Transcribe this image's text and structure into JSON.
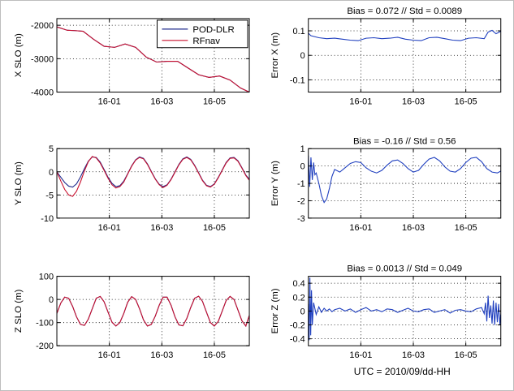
{
  "figure": {
    "xlabel_bottom": "UTC = 2010/09/dd-HH",
    "x_ticks": [
      "16-01",
      "16-03",
      "16-05"
    ],
    "x_range": [
      "15-23:00",
      "16-06:20"
    ]
  },
  "chart_data": [
    {
      "id": "x-slo",
      "type": "line",
      "ylabel": "X SLO (m)",
      "title": "",
      "ylim": [
        -4000,
        -1800
      ],
      "yticks": [
        -4000,
        -3000,
        -2000
      ],
      "grid": true,
      "legend": {
        "placement": "top-right",
        "entries": [
          "POD-DLR",
          "RFnav"
        ]
      },
      "x_unit": "hours since 16-00:00 (UTC, 2010/09/16)",
      "x_hours": [
        -1.0,
        -0.6,
        -0.3,
        0.0,
        0.4,
        0.8,
        1.2,
        1.6,
        2.0,
        2.4,
        2.8,
        3.2,
        3.6,
        4.0,
        4.4,
        4.8,
        5.2,
        5.6,
        6.0,
        6.33
      ],
      "series": [
        {
          "name": "POD-DLR",
          "color": "#1f2a8c",
          "values": [
            -2050,
            -2150,
            -2160,
            -2180,
            -2420,
            -2630,
            -2660,
            -2560,
            -2660,
            -2950,
            -3100,
            -3080,
            -3080,
            -3280,
            -3480,
            -3560,
            -3520,
            -3640,
            -3880,
            -4000
          ]
        },
        {
          "name": "RFnav",
          "color": "#c8102e",
          "values": [
            -2050,
            -2150,
            -2160,
            -2180,
            -2420,
            -2630,
            -2660,
            -2560,
            -2660,
            -2950,
            -3100,
            -3080,
            -3080,
            -3280,
            -3480,
            -3560,
            -3520,
            -3640,
            -3880,
            -4000
          ]
        }
      ]
    },
    {
      "id": "y-slo",
      "type": "line",
      "ylabel": "Y SLO (m)",
      "title": "",
      "ylim": [
        -10,
        5
      ],
      "yticks": [
        -10,
        -5,
        0,
        5
      ],
      "grid": true,
      "x_hours": [
        -1.0,
        -0.85,
        -0.7,
        -0.55,
        -0.4,
        -0.25,
        -0.1,
        0.05,
        0.2,
        0.35,
        0.5,
        0.65,
        0.8,
        0.95,
        1.1,
        1.25,
        1.4,
        1.55,
        1.7,
        1.85,
        2.0,
        2.15,
        2.3,
        2.45,
        2.6,
        2.75,
        2.9,
        3.05,
        3.2,
        3.35,
        3.5,
        3.65,
        3.8,
        3.95,
        4.1,
        4.25,
        4.4,
        4.55,
        4.7,
        4.85,
        5.0,
        5.15,
        5.3,
        5.45,
        5.6,
        5.75,
        5.9,
        6.05,
        6.2,
        6.33
      ],
      "series": [
        {
          "name": "POD-DLR",
          "color": "#1f2a8c",
          "values": [
            0,
            -1.2,
            -2.3,
            -3.1,
            -3.3,
            -2.6,
            -1.1,
            0.7,
            2.3,
            3.2,
            3.1,
            2.1,
            0.5,
            -1.2,
            -2.5,
            -3.2,
            -3.0,
            -2.0,
            -0.4,
            1.3,
            2.6,
            3.2,
            2.9,
            1.7,
            0.1,
            -1.5,
            -2.7,
            -3.2,
            -2.8,
            -1.6,
            0.0,
            1.6,
            2.8,
            3.2,
            2.7,
            1.4,
            -0.2,
            -1.8,
            -2.9,
            -3.2,
            -2.6,
            -1.2,
            0.4,
            2.0,
            3.0,
            3.1,
            2.4,
            0.9,
            -0.7,
            -1.6
          ]
        },
        {
          "name": "RFnav",
          "color": "#c8102e",
          "values": [
            0,
            -2.0,
            -3.8,
            -5.0,
            -5.3,
            -4.2,
            -2.2,
            0.2,
            2.2,
            3.3,
            3.0,
            1.9,
            0.3,
            -1.4,
            -2.8,
            -3.5,
            -3.2,
            -2.2,
            -0.5,
            1.2,
            2.5,
            3.1,
            2.8,
            1.6,
            0.0,
            -1.6,
            -2.8,
            -3.4,
            -2.9,
            -1.7,
            -0.1,
            1.5,
            2.7,
            3.1,
            2.6,
            1.3,
            -0.3,
            -1.9,
            -3.0,
            -3.3,
            -2.7,
            -1.3,
            0.3,
            1.9,
            2.9,
            3.0,
            2.3,
            0.8,
            -0.8,
            -1.8
          ]
        }
      ]
    },
    {
      "id": "z-slo",
      "type": "line",
      "ylabel": "Z SLO (m)",
      "title": "",
      "ylim": [
        -200,
        100
      ],
      "yticks": [
        -200,
        -100,
        0,
        100
      ],
      "grid": true,
      "x_hours": [
        -1.0,
        -0.85,
        -0.7,
        -0.55,
        -0.4,
        -0.25,
        -0.1,
        0.05,
        0.2,
        0.35,
        0.5,
        0.65,
        0.8,
        0.95,
        1.1,
        1.25,
        1.4,
        1.55,
        1.7,
        1.85,
        2.0,
        2.15,
        2.3,
        2.45,
        2.6,
        2.75,
        2.9,
        3.05,
        3.2,
        3.35,
        3.5,
        3.65,
        3.8,
        3.95,
        4.1,
        4.25,
        4.4,
        4.55,
        4.7,
        4.85,
        5.0,
        5.15,
        5.3,
        5.45,
        5.6,
        5.75,
        5.9,
        6.05,
        6.2,
        6.33
      ],
      "series": [
        {
          "name": "POD-DLR",
          "color": "#1f2a8c",
          "values": [
            -60,
            -15,
            10,
            5,
            -30,
            -75,
            -108,
            -112,
            -85,
            -40,
            5,
            13,
            -10,
            -55,
            -98,
            -115,
            -100,
            -60,
            -12,
            12,
            0,
            -40,
            -88,
            -115,
            -108,
            -72,
            -25,
            10,
            10,
            -25,
            -75,
            -110,
            -114,
            -82,
            -35,
            5,
            14,
            -8,
            -55,
            -100,
            -115,
            -95,
            -50,
            -5,
            13,
            0,
            -45,
            -92,
            -115,
            -70
          ]
        },
        {
          "name": "RFnav",
          "color": "#c8102e",
          "values": [
            -60,
            -15,
            10,
            5,
            -30,
            -75,
            -108,
            -112,
            -85,
            -40,
            5,
            13,
            -10,
            -55,
            -98,
            -115,
            -100,
            -60,
            -12,
            12,
            0,
            -40,
            -88,
            -115,
            -108,
            -72,
            -25,
            10,
            10,
            -25,
            -75,
            -110,
            -114,
            -82,
            -35,
            5,
            14,
            -8,
            -55,
            -100,
            -115,
            -95,
            -50,
            -5,
            13,
            0,
            -45,
            -92,
            -115,
            -70
          ]
        }
      ]
    },
    {
      "id": "err-x",
      "type": "line",
      "title": "Bias = 0.072 // Std = 0.0089",
      "ylabel": "Error X (m)",
      "ylim": [
        -0.15,
        0.15
      ],
      "yticks": [
        -0.1,
        0,
        0.1
      ],
      "grid": true,
      "x_hours": [
        -1.0,
        -0.9,
        -0.6,
        -0.3,
        0.0,
        0.3,
        0.6,
        0.9,
        1.2,
        1.5,
        1.8,
        2.1,
        2.4,
        2.7,
        3.0,
        3.3,
        3.6,
        3.9,
        4.2,
        4.5,
        4.8,
        5.1,
        5.4,
        5.7,
        5.85,
        6.0,
        6.15,
        6.33
      ],
      "series": [
        {
          "name": "error",
          "color": "#1f3fbf",
          "values": [
            0.09,
            0.08,
            0.072,
            0.068,
            0.07,
            0.066,
            0.062,
            0.06,
            0.07,
            0.072,
            0.068,
            0.07,
            0.074,
            0.066,
            0.062,
            0.06,
            0.072,
            0.074,
            0.068,
            0.062,
            0.06,
            0.07,
            0.072,
            0.068,
            0.095,
            0.102,
            0.088,
            0.098
          ]
        }
      ]
    },
    {
      "id": "err-y",
      "type": "line",
      "title": "Bias = -0.16 // Std = 0.56",
      "ylabel": "Error Y (m)",
      "ylim": [
        -3,
        1
      ],
      "yticks": [
        -3,
        -2,
        -1,
        0,
        1
      ],
      "grid": true,
      "x_hours": [
        -1.0,
        -0.95,
        -0.9,
        -0.85,
        -0.8,
        -0.75,
        -0.7,
        -0.6,
        -0.5,
        -0.4,
        -0.3,
        -0.2,
        -0.1,
        0.0,
        0.2,
        0.4,
        0.6,
        0.8,
        1.0,
        1.2,
        1.4,
        1.6,
        1.8,
        2.0,
        2.2,
        2.4,
        2.6,
        2.8,
        3.0,
        3.2,
        3.4,
        3.6,
        3.8,
        4.0,
        4.2,
        4.4,
        4.6,
        4.8,
        5.0,
        5.2,
        5.4,
        5.6,
        5.8,
        6.0,
        6.2,
        6.33
      ],
      "series": [
        {
          "name": "error",
          "color": "#1f3fbf",
          "values": [
            0.6,
            -1.2,
            0.5,
            -0.8,
            0.2,
            -0.5,
            -0.4,
            -1.0,
            -1.7,
            -2.1,
            -1.9,
            -1.3,
            -0.6,
            -0.2,
            -0.35,
            -0.1,
            0.15,
            0.25,
            0.2,
            -0.1,
            -0.3,
            -0.4,
            -0.25,
            0.05,
            0.3,
            0.35,
            0.15,
            -0.15,
            -0.35,
            -0.25,
            0.1,
            0.4,
            0.5,
            0.3,
            -0.05,
            -0.3,
            -0.35,
            -0.15,
            0.2,
            0.45,
            0.5,
            0.25,
            -0.15,
            -0.35,
            -0.4,
            -0.3
          ]
        }
      ]
    },
    {
      "id": "err-z",
      "type": "line",
      "title": "Bias = 0.0013 // Std = 0.049",
      "ylabel": "Error Z (m)",
      "xlabel": "UTC = 2010/09/dd-HH",
      "ylim": [
        -0.5,
        0.5
      ],
      "yticks": [
        -0.4,
        -0.2,
        0,
        0.2,
        0.4
      ],
      "grid": true,
      "x_hours": [
        -1.0,
        -0.97,
        -0.94,
        -0.91,
        -0.88,
        -0.85,
        -0.8,
        -0.7,
        -0.6,
        -0.5,
        -0.4,
        -0.3,
        -0.2,
        -0.1,
        0.0,
        0.2,
        0.4,
        0.6,
        0.8,
        1.0,
        1.2,
        1.4,
        1.6,
        1.8,
        2.0,
        2.2,
        2.4,
        2.6,
        2.8,
        3.0,
        3.2,
        3.4,
        3.6,
        3.8,
        4.0,
        4.2,
        4.4,
        4.6,
        4.8,
        5.0,
        5.2,
        5.4,
        5.6,
        5.7,
        5.75,
        5.8,
        5.85,
        5.9,
        5.95,
        6.0,
        6.05,
        6.1,
        6.15,
        6.2,
        6.25,
        6.3,
        6.33
      ],
      "series": [
        {
          "name": "error",
          "color": "#1f3fbf",
          "values": [
            0.1,
            -0.42,
            0.48,
            -0.35,
            0.3,
            -0.2,
            0.12,
            -0.05,
            0.06,
            -0.02,
            0.04,
            0.0,
            0.03,
            -0.01,
            0.02,
            0.04,
            0.0,
            0.03,
            -0.02,
            0.02,
            0.05,
            0.0,
            0.02,
            -0.01,
            0.03,
            0.02,
            -0.02,
            0.01,
            0.04,
            0.0,
            -0.01,
            0.02,
            0.03,
            -0.02,
            0.0,
            0.02,
            -0.03,
            0.01,
            0.02,
            0.0,
            -0.01,
            0.03,
            0.05,
            -0.04,
            0.12,
            -0.15,
            0.22,
            -0.1,
            0.08,
            -0.18,
            0.15,
            -0.2,
            0.12,
            -0.16,
            0.1,
            -0.2,
            -0.05
          ]
        }
      ]
    }
  ]
}
